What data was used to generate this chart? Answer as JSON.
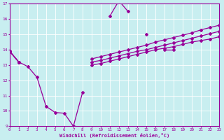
{
  "xlabel": "Windchill (Refroidissement éolien,°C)",
  "bg_color": "#c8eef0",
  "line_color": "#990099",
  "grid_color": "#ffffff",
  "xmin": 0,
  "xmax": 23,
  "ymin": 9,
  "ymax": 17,
  "yticks": [
    9,
    10,
    11,
    12,
    13,
    14,
    15,
    16,
    17
  ],
  "xticks": [
    0,
    1,
    2,
    3,
    4,
    5,
    6,
    7,
    8,
    9,
    10,
    11,
    12,
    13,
    14,
    15,
    16,
    17,
    18,
    19,
    20,
    21,
    22,
    23
  ],
  "line1_y": [
    13.9,
    13.2,
    12.9,
    12.2,
    10.3,
    9.9,
    9.85,
    9.0,
    11.2,
    null,
    null,
    16.2,
    17.2,
    16.5,
    null,
    15.0,
    null,
    14.0,
    14.0,
    null,
    null,
    null,
    null,
    null
  ],
  "line2_y": [
    13.9,
    13.2,
    null,
    null,
    null,
    null,
    null,
    null,
    null,
    13.4,
    13.55,
    13.7,
    13.85,
    14.0,
    14.15,
    14.3,
    14.5,
    14.65,
    14.8,
    14.95,
    15.1,
    15.3,
    15.45,
    15.6
  ],
  "line3_y": [
    13.9,
    13.2,
    null,
    null,
    null,
    null,
    null,
    null,
    null,
    13.2,
    13.3,
    13.45,
    13.6,
    13.75,
    13.9,
    14.0,
    14.15,
    14.3,
    14.45,
    14.6,
    14.75,
    14.9,
    15.05,
    15.2
  ],
  "line4_y": [
    13.9,
    13.2,
    null,
    null,
    null,
    null,
    null,
    null,
    null,
    13.0,
    13.1,
    13.25,
    13.4,
    13.55,
    13.7,
    13.85,
    14.0,
    14.1,
    14.2,
    14.35,
    14.5,
    14.6,
    14.7,
    14.85
  ]
}
